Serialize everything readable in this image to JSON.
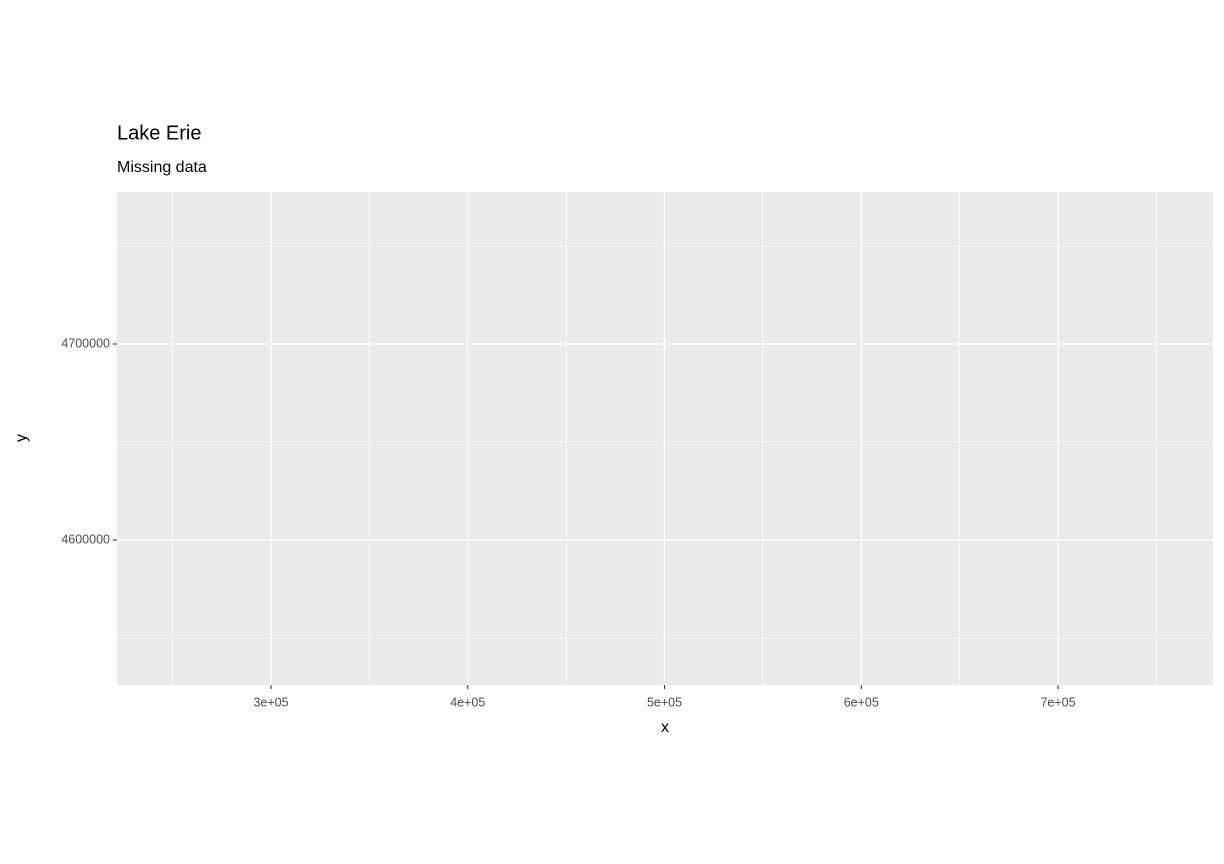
{
  "chart_data": {
    "type": "scatter",
    "title": "Lake Erie",
    "subtitle": "Missing data",
    "x_label": "x",
    "y_label": "y",
    "series": [],
    "xlim": [
      221729,
      778780
    ],
    "ylim": [
      4526020,
      4777551
    ],
    "xticks": [
      {
        "value": 300000,
        "label": "3e+05"
      },
      {
        "value": 400000,
        "label": "4e+05"
      },
      {
        "value": 500000,
        "label": "5e+05"
      },
      {
        "value": 600000,
        "label": "6e+05"
      },
      {
        "value": 700000,
        "label": "7e+05"
      }
    ],
    "yticks": [
      4600000,
      4700000
    ],
    "x_minor_ticks": [
      250000,
      350000,
      450000,
      550000,
      650000,
      750000
    ],
    "y_minor_ticks": [
      4550000,
      4650000,
      4750000
    ],
    "grid": true,
    "panel_color": "#EBEBEB",
    "grid_color": "#FFFFFF"
  }
}
